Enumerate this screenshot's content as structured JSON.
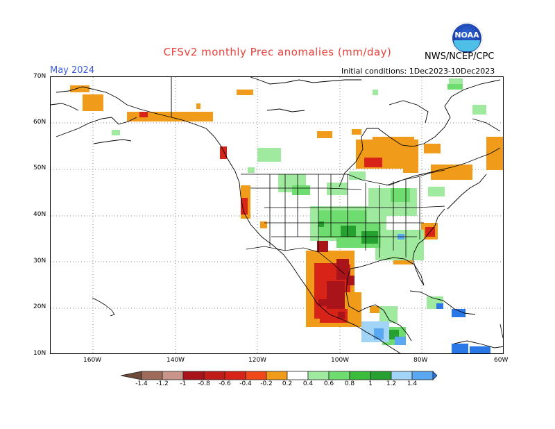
{
  "title": "CFSv2 monthly Prec anomalies (mm/day)",
  "agency": "NWS/NCEP/CPC",
  "logo_text": "NOAA",
  "target_month": "May 2024",
  "initial_conditions": "Initial conditions: 1Dec2023-10Dec2023",
  "lat_labels": [
    "70N",
    "60N",
    "50N",
    "40N",
    "30N",
    "20N",
    "10N"
  ],
  "lon_labels": [
    "160W",
    "140W",
    "120W",
    "100W",
    "80W",
    "60W"
  ],
  "legend": {
    "labels": [
      "-1.4",
      "-1.2",
      "-1",
      "-0.8",
      "-0.6",
      "-0.4",
      "-0.2",
      "0.2",
      "0.4",
      "0.6",
      "0.8",
      "1",
      "1.2",
      "1.4"
    ],
    "colors": [
      "#6e4a3a",
      "#9e6b5a",
      "#c9958a",
      "#a8141a",
      "#d82418",
      "#f04818",
      "#f09c1a",
      "#ffffff",
      "#a0eaa0",
      "#6edc6e",
      "#3cbc3c",
      "#26a030",
      "#a2d4f8",
      "#5aa8f2",
      "#2a78e8"
    ]
  },
  "colors": {
    "title": "#e8403a",
    "month": "#3b5bd6",
    "dry_strong": "#a8141a",
    "dry_mid": "#d82418",
    "dry_light": "#f09c1a",
    "wet_light": "#a0eaa0",
    "wet_mid": "#6edc6e",
    "wet_strong": "#26a030",
    "wet_blue": "#2a78e8"
  }
}
